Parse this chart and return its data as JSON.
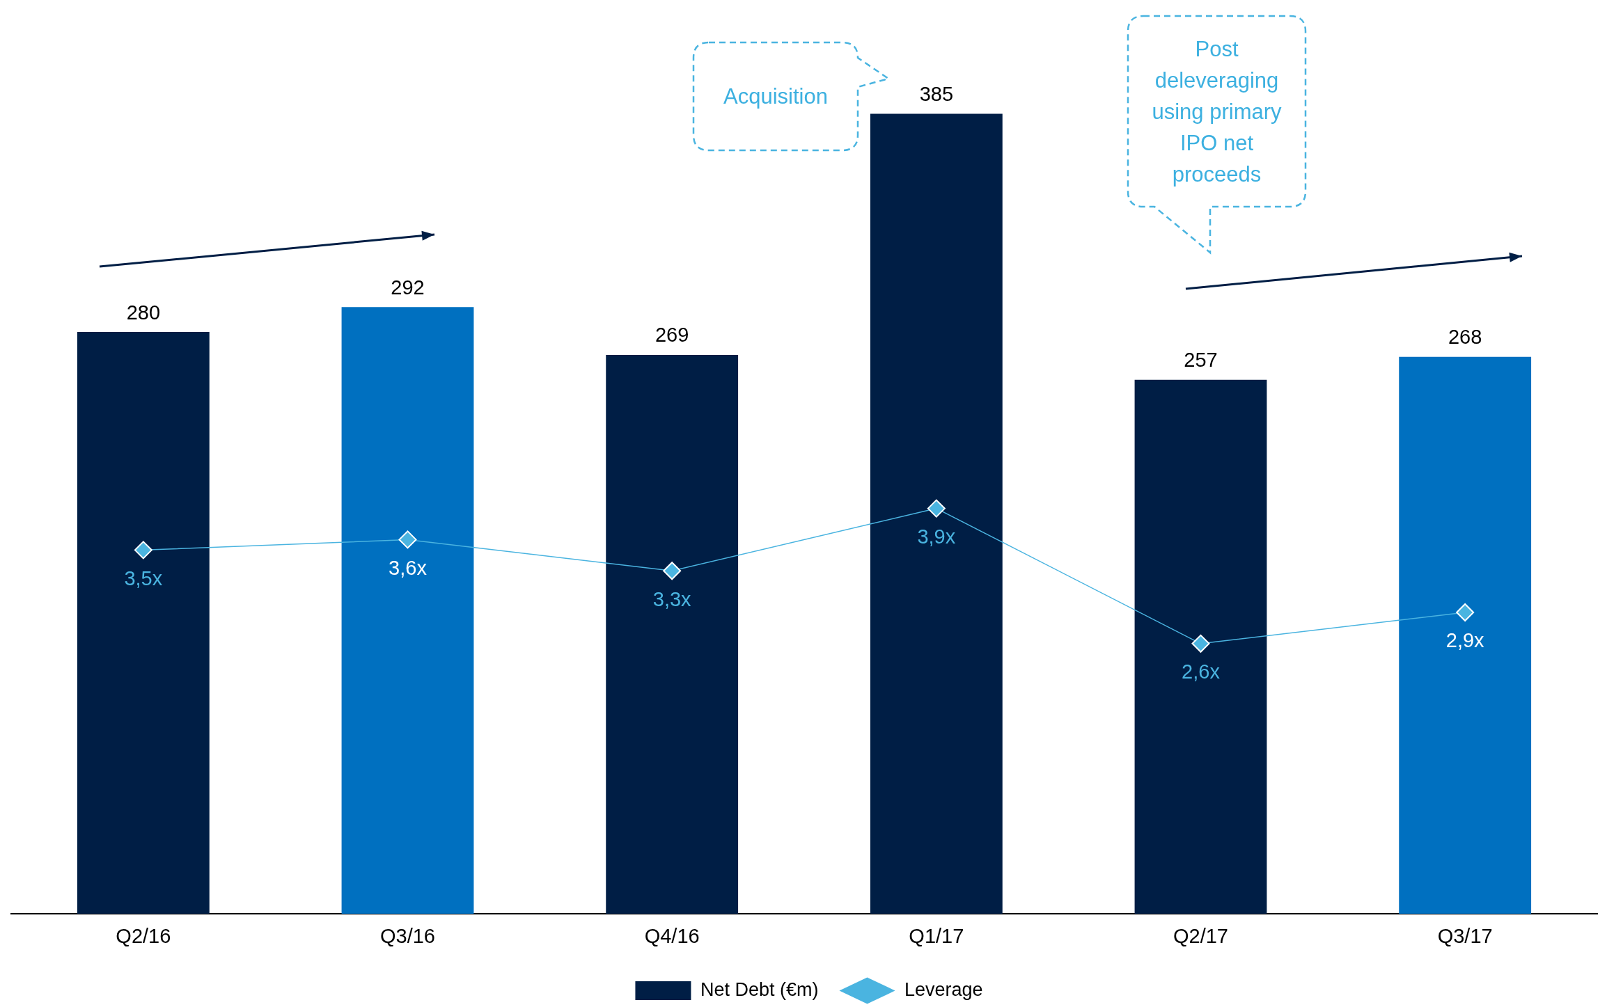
{
  "chart_data": {
    "type": "bar",
    "categories": [
      "Q2/16",
      "Q3/16",
      "Q4/16",
      "Q1/17",
      "Q2/17",
      "Q3/17"
    ],
    "series": [
      {
        "name": "Net Debt (€m)",
        "color": "#001e45",
        "colors": [
          "#001e45",
          "#0070c0",
          "#001e45",
          "#001e45",
          "#001e45",
          "#0070c0"
        ],
        "values": [
          280,
          292,
          269,
          385,
          257,
          268
        ]
      },
      {
        "name": "Leverage",
        "type": "line",
        "axis": "y2",
        "color": "#4ab4e0",
        "marker": "diamond",
        "values": [
          3.5,
          3.6,
          3.3,
          3.9,
          2.6,
          2.9
        ],
        "value_labels": [
          "3,5x",
          "3,6x",
          "3,3x",
          "3,9x",
          "2,6x",
          "2,9x"
        ]
      }
    ],
    "tick_labels": "x",
    "data_labels": true,
    "grid": false,
    "legend": "bottom",
    "annotations": [
      "Acquisition",
      "Post deleveraging using primary IPO net proceeds"
    ]
  }
}
